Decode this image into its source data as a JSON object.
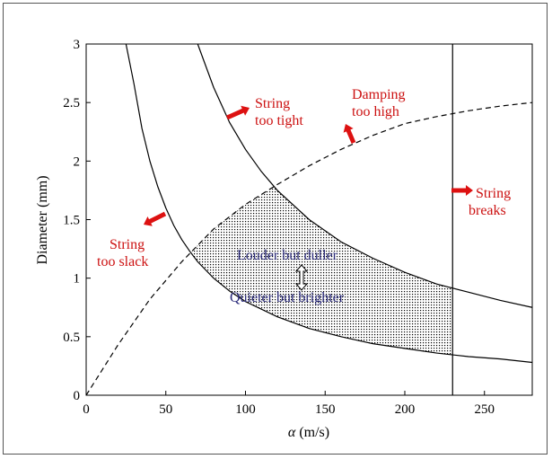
{
  "chart_data": {
    "type": "line",
    "xlabel_symbol": "α",
    "xlabel_unit": " (m/s)",
    "ylabel": "Diameter (mm)",
    "xlim": [
      0,
      280
    ],
    "ylim": [
      0,
      3
    ],
    "xticks": [
      "0",
      "50",
      "100",
      "150",
      "200",
      "250"
    ],
    "xtick_values": [
      0,
      50,
      100,
      150,
      200,
      250
    ],
    "yticks": [
      "0",
      "0.5",
      "1",
      "1.5",
      "2",
      "2.5",
      "3"
    ],
    "ytick_values": [
      0,
      0.5,
      1,
      1.5,
      2,
      2.5,
      3
    ],
    "series": [
      {
        "key": "too-slack",
        "style": "solid",
        "x": [
          25,
          30,
          35,
          40,
          45,
          50,
          55,
          60,
          65,
          70,
          80,
          90,
          100,
          120,
          140,
          160,
          180,
          200,
          220,
          240,
          260,
          280
        ],
        "y": [
          3.0,
          2.66,
          2.28,
          2.0,
          1.78,
          1.6,
          1.45,
          1.33,
          1.23,
          1.14,
          1.0,
          0.89,
          0.8,
          0.67,
          0.57,
          0.5,
          0.44,
          0.4,
          0.36,
          0.33,
          0.31,
          0.28
        ]
      },
      {
        "key": "too-tight",
        "style": "solid",
        "x": [
          70,
          80,
          90,
          100,
          110,
          120,
          140,
          160,
          180,
          200,
          220,
          240,
          260,
          280
        ],
        "y": [
          3.0,
          2.63,
          2.33,
          2.1,
          1.91,
          1.75,
          1.5,
          1.31,
          1.17,
          1.05,
          0.95,
          0.88,
          0.81,
          0.75
        ]
      },
      {
        "key": "damping",
        "style": "dashed",
        "x": [
          0,
          20,
          40,
          60,
          80,
          100,
          120,
          140,
          160,
          180,
          200,
          220,
          240,
          260,
          280
        ],
        "y": [
          0,
          0.43,
          0.82,
          1.14,
          1.42,
          1.63,
          1.8,
          1.96,
          2.1,
          2.22,
          2.32,
          2.38,
          2.43,
          2.47,
          2.5
        ]
      },
      {
        "key": "breaks",
        "style": "solid",
        "x": [
          230,
          230
        ],
        "y": [
          0,
          3
        ]
      }
    ],
    "shaded_region": {
      "pattern": "dotted",
      "x_min": 66,
      "x_max": 230
    },
    "annotations": [
      {
        "key": "slack-1",
        "text": "String",
        "color": "#cc1111"
      },
      {
        "key": "slack-2",
        "text": "too slack",
        "color": "#cc1111"
      },
      {
        "key": "tight-1",
        "text": "String",
        "color": "#cc1111"
      },
      {
        "key": "tight-2",
        "text": "too tight",
        "color": "#cc1111"
      },
      {
        "key": "damp-1",
        "text": "Damping",
        "color": "#cc1111"
      },
      {
        "key": "damp-2",
        "text": "too high",
        "color": "#cc1111"
      },
      {
        "key": "breaks-1",
        "text": "String",
        "color": "#cc1111"
      },
      {
        "key": "breaks-2",
        "text": "breaks",
        "color": "#cc1111"
      },
      {
        "key": "louder",
        "text": "Louder but duller",
        "color": "#2a2a7a"
      },
      {
        "key": "quieter",
        "text": "Quieter but brighter",
        "color": "#2a2a7a"
      }
    ]
  }
}
